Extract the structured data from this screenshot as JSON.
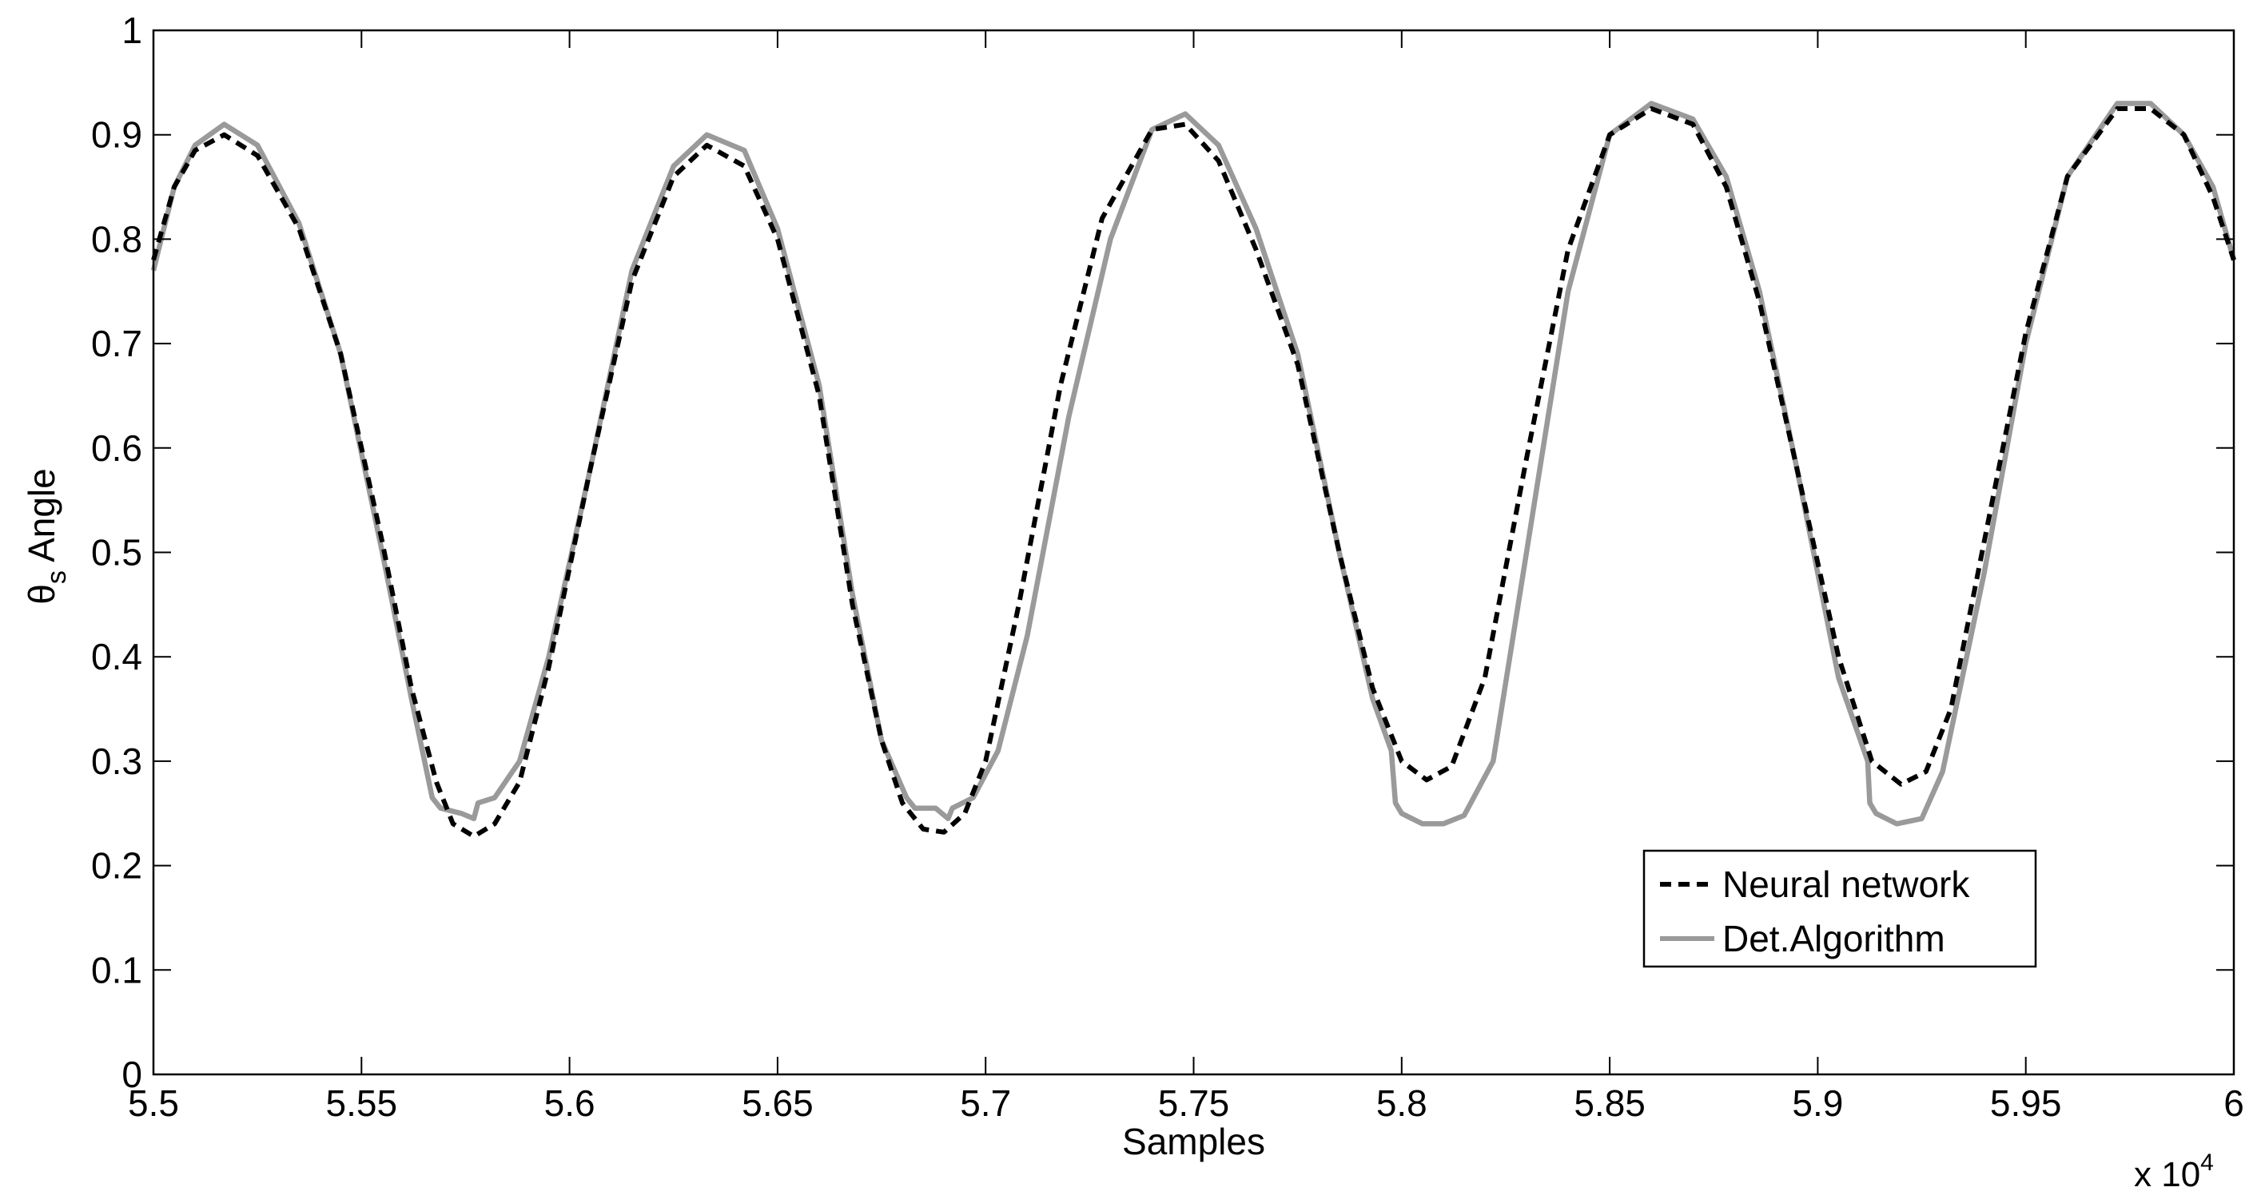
{
  "chart_data": {
    "type": "line",
    "title": "",
    "xlabel": "Samples",
    "ylabel": "θ",
    "ylabel_sub": "s",
    "ylabel_rest": " Angle",
    "x_scale_label": "x 10",
    "x_scale_exp": "4",
    "xlim": [
      5.5,
      6.0
    ],
    "ylim": [
      0,
      1
    ],
    "x_ticks": [
      5.5,
      5.55,
      5.6,
      5.65,
      5.7,
      5.75,
      5.8,
      5.85,
      5.9,
      5.95,
      6.0
    ],
    "x_tick_labels": [
      "5.5",
      "5.55",
      "5.6",
      "5.65",
      "5.7",
      "5.75",
      "5.8",
      "5.85",
      "5.9",
      "5.95",
      "6"
    ],
    "y_ticks": [
      0,
      0.1,
      0.2,
      0.3,
      0.4,
      0.5,
      0.6,
      0.7,
      0.8,
      0.9,
      1
    ],
    "y_tick_labels": [
      "0",
      "0.1",
      "0.2",
      "0.3",
      "0.4",
      "0.5",
      "0.6",
      "0.7",
      "0.8",
      "0.9",
      "1"
    ],
    "grid": false,
    "legend_position": "bottom-right",
    "series": [
      {
        "name": "Neural network",
        "color": "#000000",
        "style": "dashed",
        "x": [
          5.5,
          5.505,
          5.51,
          5.517,
          5.525,
          5.535,
          5.545,
          5.555,
          5.562,
          5.568,
          5.572,
          5.577,
          5.582,
          5.588,
          5.595,
          5.605,
          5.615,
          5.625,
          5.633,
          5.642,
          5.65,
          5.66,
          5.668,
          5.675,
          5.68,
          5.685,
          5.69,
          5.695,
          5.7,
          5.708,
          5.718,
          5.728,
          5.74,
          5.748,
          5.756,
          5.765,
          5.775,
          5.785,
          5.793,
          5.8,
          5.806,
          5.812,
          5.82,
          5.83,
          5.84,
          5.85,
          5.86,
          5.87,
          5.878,
          5.886,
          5.895,
          5.905,
          5.913,
          5.92,
          5.926,
          5.932,
          5.94,
          5.95,
          5.96,
          5.972,
          5.98,
          5.988,
          5.995,
          6.0
        ],
        "y": [
          0.78,
          0.85,
          0.885,
          0.9,
          0.88,
          0.81,
          0.69,
          0.51,
          0.37,
          0.28,
          0.24,
          0.228,
          0.24,
          0.28,
          0.39,
          0.58,
          0.76,
          0.86,
          0.89,
          0.87,
          0.8,
          0.65,
          0.45,
          0.32,
          0.26,
          0.235,
          0.232,
          0.25,
          0.3,
          0.45,
          0.66,
          0.82,
          0.905,
          0.91,
          0.875,
          0.79,
          0.68,
          0.5,
          0.37,
          0.3,
          0.282,
          0.295,
          0.38,
          0.59,
          0.79,
          0.9,
          0.925,
          0.91,
          0.85,
          0.74,
          0.58,
          0.4,
          0.3,
          0.278,
          0.29,
          0.35,
          0.51,
          0.71,
          0.86,
          0.925,
          0.925,
          0.9,
          0.84,
          0.78
        ]
      },
      {
        "name": "Det.Algorithm",
        "color": "#9a9a9a",
        "style": "solid",
        "x": [
          5.5,
          5.505,
          5.51,
          5.517,
          5.525,
          5.535,
          5.545,
          5.555,
          5.562,
          5.567,
          5.569,
          5.574,
          5.577,
          5.578,
          5.582,
          5.588,
          5.595,
          5.605,
          5.615,
          5.625,
          5.633,
          5.642,
          5.65,
          5.66,
          5.668,
          5.675,
          5.681,
          5.683,
          5.688,
          5.691,
          5.692,
          5.697,
          5.703,
          5.71,
          5.72,
          5.73,
          5.74,
          5.748,
          5.756,
          5.765,
          5.775,
          5.785,
          5.793,
          5.7975,
          5.7985,
          5.8,
          5.805,
          5.81,
          5.815,
          5.822,
          5.83,
          5.84,
          5.85,
          5.86,
          5.87,
          5.878,
          5.886,
          5.895,
          5.905,
          5.912,
          5.9125,
          5.914,
          5.919,
          5.925,
          5.93,
          5.94,
          5.95,
          5.96,
          5.972,
          5.98,
          5.988,
          5.995,
          6.0
        ],
        "y": [
          0.77,
          0.85,
          0.89,
          0.91,
          0.89,
          0.815,
          0.69,
          0.5,
          0.36,
          0.265,
          0.255,
          0.25,
          0.245,
          0.26,
          0.265,
          0.3,
          0.4,
          0.58,
          0.77,
          0.87,
          0.9,
          0.885,
          0.81,
          0.66,
          0.46,
          0.32,
          0.265,
          0.255,
          0.255,
          0.245,
          0.255,
          0.265,
          0.31,
          0.42,
          0.63,
          0.8,
          0.905,
          0.92,
          0.89,
          0.81,
          0.69,
          0.5,
          0.36,
          0.31,
          0.26,
          0.25,
          0.24,
          0.24,
          0.248,
          0.3,
          0.5,
          0.75,
          0.9,
          0.93,
          0.915,
          0.86,
          0.75,
          0.58,
          0.38,
          0.3,
          0.26,
          0.25,
          0.24,
          0.245,
          0.29,
          0.48,
          0.7,
          0.86,
          0.93,
          0.93,
          0.9,
          0.85,
          0.78
        ]
      }
    ]
  }
}
